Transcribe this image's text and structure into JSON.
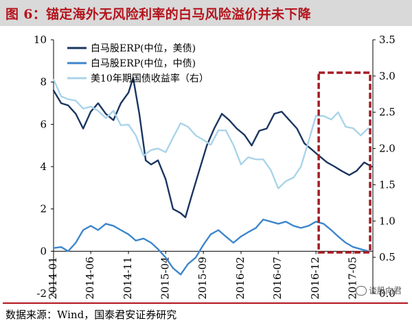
{
  "title": "图 6：锚定海外无风险利率的白马风险溢价并未下降",
  "source": "数据来源：Wind，国泰君安证券研究",
  "watermark": "谈股向君",
  "colors": {
    "title": "#b4141c",
    "series1": "#1a3560",
    "series2": "#3d86cc",
    "series3": "#a9d4ea",
    "highlight_box": "#a51c24"
  },
  "chart_data": {
    "type": "line",
    "x_tick_labels": [
      "2014-01",
      "2014-06",
      "2014-11",
      "2015-04",
      "2015-09",
      "2016-02",
      "2016-07",
      "2016-12",
      "2017-05"
    ],
    "y_left": {
      "min": -2,
      "max": 10,
      "ticks": [
        "10",
        "8",
        "6",
        "4",
        "2",
        "0",
        "-2"
      ]
    },
    "y_right": {
      "min": 0.0,
      "max": 3.5,
      "ticks": [
        "3.5",
        "3.0",
        "2.5",
        "2.0",
        "1.5",
        "1.0",
        "0.5",
        "0.0"
      ]
    },
    "highlight": {
      "from": "2016-12",
      "to": "2017-07"
    },
    "series": [
      {
        "name": "白马股ERP(中位，美债)",
        "axis": "left",
        "color": "#1a3560",
        "points": [
          [
            "2014-01-01",
            7.6
          ],
          [
            "2014-02-01",
            7.0
          ],
          [
            "2014-03-01",
            6.9
          ],
          [
            "2014-04-01",
            6.5
          ],
          [
            "2014-05-01",
            5.8
          ],
          [
            "2014-06-01",
            6.6
          ],
          [
            "2014-07-01",
            7.0
          ],
          [
            "2014-08-01",
            6.5
          ],
          [
            "2014-09-01",
            6.2
          ],
          [
            "2014-10-01",
            7.0
          ],
          [
            "2014-11-01",
            7.5
          ],
          [
            "2014-11-20",
            8.2
          ],
          [
            "2014-12-15",
            6.5
          ],
          [
            "2015-01-10",
            4.3
          ],
          [
            "2015-02-01",
            4.1
          ],
          [
            "2015-03-01",
            4.3
          ],
          [
            "2015-04-01",
            3.4
          ],
          [
            "2015-05-01",
            2.0
          ],
          [
            "2015-06-01",
            1.8
          ],
          [
            "2015-06-20",
            1.6
          ],
          [
            "2015-07-15",
            2.6
          ],
          [
            "2015-08-15",
            3.8
          ],
          [
            "2015-09-15",
            5.0
          ],
          [
            "2015-10-15",
            5.8
          ],
          [
            "2015-11-15",
            6.5
          ],
          [
            "2015-12-15",
            6.2
          ],
          [
            "2016-01-15",
            5.8
          ],
          [
            "2016-02-15",
            5.5
          ],
          [
            "2016-03-15",
            5.0
          ],
          [
            "2016-04-15",
            5.7
          ],
          [
            "2016-05-15",
            5.8
          ],
          [
            "2016-06-15",
            6.5
          ],
          [
            "2016-07-15",
            6.6
          ],
          [
            "2016-08-15",
            6.2
          ],
          [
            "2016-09-15",
            5.8
          ],
          [
            "2016-10-15",
            5.1
          ],
          [
            "2016-11-15",
            4.8
          ],
          [
            "2016-12-15",
            4.5
          ],
          [
            "2017-01-15",
            4.2
          ],
          [
            "2017-02-15",
            4.0
          ],
          [
            "2017-03-15",
            3.8
          ],
          [
            "2017-04-15",
            3.6
          ],
          [
            "2017-05-15",
            3.8
          ],
          [
            "2017-06-15",
            4.2
          ],
          [
            "2017-07-15",
            4.0
          ]
        ]
      },
      {
        "name": "白马股ERP(中位，中债)",
        "axis": "left",
        "color": "#3d86cc",
        "points": [
          [
            "2014-01-01",
            0.15
          ],
          [
            "2014-02-01",
            0.2
          ],
          [
            "2014-03-01",
            0.0
          ],
          [
            "2014-04-01",
            0.4
          ],
          [
            "2014-05-01",
            1.0
          ],
          [
            "2014-06-01",
            1.2
          ],
          [
            "2014-07-01",
            1.0
          ],
          [
            "2014-08-01",
            1.3
          ],
          [
            "2014-09-01",
            1.2
          ],
          [
            "2014-10-01",
            1.0
          ],
          [
            "2014-11-01",
            0.8
          ],
          [
            "2014-12-01",
            0.5
          ],
          [
            "2015-01-01",
            0.6
          ],
          [
            "2015-02-01",
            0.4
          ],
          [
            "2015-03-01",
            0.1
          ],
          [
            "2015-04-01",
            -0.3
          ],
          [
            "2015-05-01",
            -0.8
          ],
          [
            "2015-06-01",
            -1.1
          ],
          [
            "2015-07-01",
            -0.6
          ],
          [
            "2015-08-01",
            -0.3
          ],
          [
            "2015-09-01",
            0.3
          ],
          [
            "2015-10-01",
            0.8
          ],
          [
            "2015-11-01",
            1.0
          ],
          [
            "2015-12-01",
            0.7
          ],
          [
            "2016-01-01",
            0.4
          ],
          [
            "2016-02-01",
            0.7
          ],
          [
            "2016-03-01",
            0.9
          ],
          [
            "2016-04-01",
            1.1
          ],
          [
            "2016-05-01",
            1.5
          ],
          [
            "2016-06-01",
            1.4
          ],
          [
            "2016-07-01",
            1.3
          ],
          [
            "2016-08-01",
            1.4
          ],
          [
            "2016-09-01",
            1.2
          ],
          [
            "2016-10-01",
            1.1
          ],
          [
            "2016-11-01",
            1.2
          ],
          [
            "2016-12-01",
            1.4
          ],
          [
            "2017-01-01",
            1.3
          ],
          [
            "2017-02-01",
            1.0
          ],
          [
            "2017-03-01",
            0.7
          ],
          [
            "2017-04-01",
            0.4
          ],
          [
            "2017-05-01",
            0.2
          ],
          [
            "2017-06-01",
            0.1
          ],
          [
            "2017-07-01",
            0.0
          ]
        ]
      },
      {
        "name": "美10年期国债收益率（右）",
        "axis": "right",
        "color": "#a9d4ea",
        "points": [
          [
            "2014-01-01",
            2.95
          ],
          [
            "2014-02-01",
            2.72
          ],
          [
            "2014-03-01",
            2.68
          ],
          [
            "2014-04-01",
            2.66
          ],
          [
            "2014-05-01",
            2.55
          ],
          [
            "2014-06-01",
            2.58
          ],
          [
            "2014-07-01",
            2.52
          ],
          [
            "2014-08-01",
            2.42
          ],
          [
            "2014-09-01",
            2.52
          ],
          [
            "2014-10-01",
            2.32
          ],
          [
            "2014-11-01",
            2.33
          ],
          [
            "2014-12-01",
            2.18
          ],
          [
            "2015-01-01",
            1.9
          ],
          [
            "2015-02-01",
            1.98
          ],
          [
            "2015-03-01",
            2.0
          ],
          [
            "2015-04-01",
            1.95
          ],
          [
            "2015-05-01",
            2.15
          ],
          [
            "2015-06-01",
            2.35
          ],
          [
            "2015-07-01",
            2.3
          ],
          [
            "2015-08-01",
            2.18
          ],
          [
            "2015-09-01",
            2.12
          ],
          [
            "2015-10-01",
            2.05
          ],
          [
            "2015-11-01",
            2.25
          ],
          [
            "2015-12-01",
            2.25
          ],
          [
            "2016-01-01",
            2.05
          ],
          [
            "2016-02-01",
            1.78
          ],
          [
            "2016-03-01",
            1.88
          ],
          [
            "2016-04-01",
            1.85
          ],
          [
            "2016-05-01",
            1.85
          ],
          [
            "2016-06-01",
            1.7
          ],
          [
            "2016-07-01",
            1.45
          ],
          [
            "2016-08-01",
            1.55
          ],
          [
            "2016-09-01",
            1.6
          ],
          [
            "2016-10-01",
            1.75
          ],
          [
            "2016-11-01",
            2.1
          ],
          [
            "2016-12-01",
            2.45
          ],
          [
            "2017-01-01",
            2.45
          ],
          [
            "2017-02-01",
            2.4
          ],
          [
            "2017-03-01",
            2.5
          ],
          [
            "2017-04-01",
            2.3
          ],
          [
            "2017-05-01",
            2.28
          ],
          [
            "2017-06-01",
            2.18
          ],
          [
            "2017-07-01",
            2.28
          ]
        ]
      }
    ]
  }
}
